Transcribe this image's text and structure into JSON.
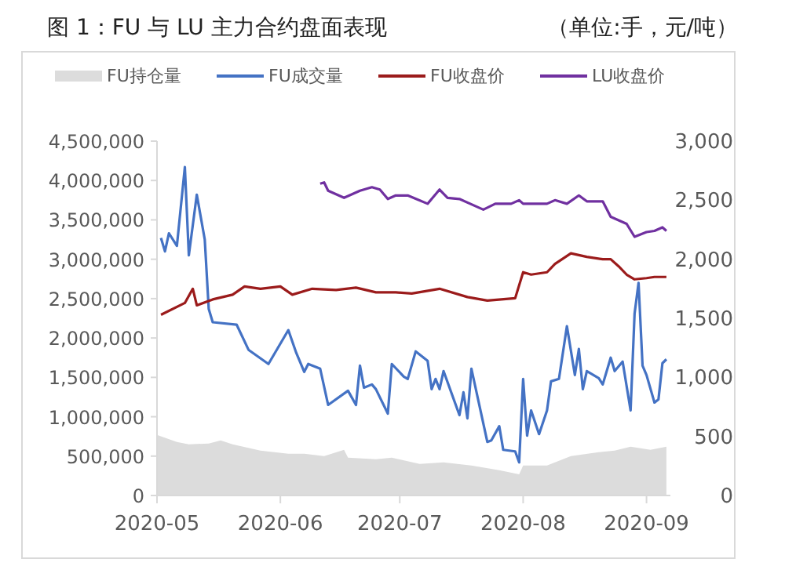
{
  "chart_data": {
    "type": "line",
    "title": "图 1：FU 与 LU 主力合约盘面表现",
    "subtitle": "（单位:手，元/吨）",
    "xlim": [
      "2020-05-01",
      "2020-09-07"
    ],
    "xticks": [
      "2020-05",
      "2020-06",
      "2020-07",
      "2020-08",
      "2020-09"
    ],
    "ylim": [
      0,
      4500000
    ],
    "yticks": [
      0,
      {
        "value": 500000,
        "label": "500,000"
      },
      {
        "value": 1000000,
        "label": "1,000,000"
      },
      {
        "value": 1500000,
        "label": "1,500,000"
      },
      {
        "value": 2000000,
        "label": "2,000,000"
      },
      {
        "value": 2500000,
        "label": "2,500,000"
      },
      {
        "value": 3000000,
        "label": "3,000,000"
      },
      {
        "value": 3500000,
        "label": "3,500,000"
      },
      {
        "value": 4000000,
        "label": "4,000,000"
      },
      {
        "value": 4500000,
        "label": "4,500,000"
      }
    ],
    "y2lim": [
      0,
      3000
    ],
    "y2ticks": [
      0,
      500,
      {
        "value": 1000,
        "label": "1,000"
      },
      {
        "value": 1500,
        "label": "1,500"
      },
      {
        "value": 2000,
        "label": "2,000"
      },
      {
        "value": 2500,
        "label": "2,500"
      },
      {
        "value": 3000,
        "label": "3,000"
      }
    ],
    "grid": false,
    "legend": "top",
    "marker": "none",
    "line_style": "solid",
    "series": [
      {
        "name": "FU持仓量",
        "type": "area",
        "color": "#dcdcdc",
        "x": [
          "2020-05-01",
          "2020-05-06",
          "2020-05-09",
          "2020-05-14",
          "2020-05-17",
          "2020-05-20",
          "2020-05-27",
          "2020-06-03",
          "2020-06-07",
          "2020-06-12",
          "2020-06-17",
          "2020-06-18",
          "2020-06-25",
          "2020-06-29",
          "2020-07-06",
          "2020-07-12",
          "2020-07-19",
          "2020-07-26",
          "2020-07-31",
          "2020-08-01",
          "2020-08-07",
          "2020-08-13",
          "2020-08-20",
          "2020-08-24",
          "2020-08-28",
          "2020-09-02",
          "2020-09-06"
        ],
        "values": [
          770000,
          680000,
          650000,
          660000,
          700000,
          650000,
          570000,
          530000,
          530000,
          500000,
          580000,
          480000,
          460000,
          480000,
          400000,
          420000,
          380000,
          320000,
          270000,
          380000,
          380000,
          500000,
          550000,
          570000,
          620000,
          580000,
          620000
        ]
      },
      {
        "name": "FU成交量",
        "color": "#4472c4",
        "x": [
          "2020-05-02",
          "2020-05-03",
          "2020-05-04",
          "2020-05-06",
          "2020-05-08",
          "2020-05-09",
          "2020-05-11",
          "2020-05-13",
          "2020-05-14",
          "2020-05-15",
          "2020-05-21",
          "2020-05-24",
          "2020-05-29",
          "2020-06-03",
          "2020-06-05",
          "2020-06-07",
          "2020-06-08",
          "2020-06-11",
          "2020-06-13",
          "2020-06-18",
          "2020-06-20",
          "2020-06-21",
          "2020-06-22",
          "2020-06-24",
          "2020-06-25",
          "2020-06-28",
          "2020-06-29",
          "2020-07-02",
          "2020-07-03",
          "2020-07-05",
          "2020-07-08",
          "2020-07-09",
          "2020-07-10",
          "2020-07-11",
          "2020-07-12",
          "2020-07-16",
          "2020-07-17",
          "2020-07-18",
          "2020-07-19",
          "2020-07-23",
          "2020-07-24",
          "2020-07-26",
          "2020-07-27",
          "2020-07-30",
          "2020-07-31",
          "2020-08-01",
          "2020-08-02",
          "2020-08-03",
          "2020-08-05",
          "2020-08-07",
          "2020-08-08",
          "2020-08-10",
          "2020-08-12",
          "2020-08-14",
          "2020-08-15",
          "2020-08-16",
          "2020-08-17",
          "2020-08-20",
          "2020-08-21",
          "2020-08-23",
          "2020-08-24",
          "2020-08-26",
          "2020-08-28",
          "2020-08-29",
          "2020-08-30",
          "2020-08-31",
          "2020-09-01",
          "2020-09-03",
          "2020-09-04",
          "2020-09-05",
          "2020-09-06"
        ],
        "values": [
          3270000,
          3100000,
          3330000,
          3170000,
          4170000,
          3050000,
          3820000,
          3250000,
          2370000,
          2200000,
          2170000,
          1850000,
          1670000,
          2100000,
          1810000,
          1570000,
          1670000,
          1610000,
          1150000,
          1330000,
          1150000,
          1650000,
          1370000,
          1410000,
          1350000,
          1040000,
          1670000,
          1510000,
          1480000,
          1830000,
          1710000,
          1350000,
          1480000,
          1350000,
          1580000,
          1020000,
          1310000,
          980000,
          1610000,
          680000,
          700000,
          880000,
          580000,
          560000,
          420000,
          1480000,
          760000,
          1080000,
          780000,
          1080000,
          1450000,
          1480000,
          2150000,
          1530000,
          1860000,
          1350000,
          1580000,
          1490000,
          1410000,
          1750000,
          1580000,
          1700000,
          1080000,
          2310000,
          2700000,
          1650000,
          1530000,
          1180000,
          1220000,
          1680000,
          1730000
        ]
      },
      {
        "name": "FU收盘价",
        "type": "line",
        "axis": "y2",
        "color": "#9b1b1b",
        "x": [
          "2020-05-02",
          "2020-05-08",
          "2020-05-10",
          "2020-05-11",
          "2020-05-15",
          "2020-05-20",
          "2020-05-23",
          "2020-05-27",
          "2020-06-01",
          "2020-06-04",
          "2020-06-09",
          "2020-06-15",
          "2020-06-20",
          "2020-06-25",
          "2020-06-30",
          "2020-07-04",
          "2020-07-11",
          "2020-07-18",
          "2020-07-23",
          "2020-07-30",
          "2020-08-01",
          "2020-08-03",
          "2020-08-07",
          "2020-08-09",
          "2020-08-13",
          "2020-08-17",
          "2020-08-21",
          "2020-08-23",
          "2020-08-25",
          "2020-08-27",
          "2020-08-29",
          "2020-09-01",
          "2020-09-03",
          "2020-09-06"
        ],
        "values": [
          1530,
          1630,
          1750,
          1610,
          1660,
          1700,
          1770,
          1750,
          1770,
          1700,
          1750,
          1740,
          1760,
          1720,
          1720,
          1710,
          1750,
          1680,
          1650,
          1670,
          1890,
          1870,
          1890,
          1960,
          2050,
          2020,
          2000,
          2000,
          1940,
          1870,
          1830,
          1840,
          1850,
          1850
        ]
      },
      {
        "name": "LU收盘价",
        "type": "line",
        "axis": "y2",
        "color": "#7030a0",
        "x": [
          "2020-06-11",
          "2020-06-12",
          "2020-06-13",
          "2020-06-17",
          "2020-06-21",
          "2020-06-24",
          "2020-06-26",
          "2020-06-28",
          "2020-06-30",
          "2020-07-03",
          "2020-07-08",
          "2020-07-11",
          "2020-07-13",
          "2020-07-16",
          "2020-07-22",
          "2020-07-25",
          "2020-07-29",
          "2020-07-31",
          "2020-08-01",
          "2020-08-07",
          "2020-08-09",
          "2020-08-12",
          "2020-08-15",
          "2020-08-17",
          "2020-08-21",
          "2020-08-23",
          "2020-08-27",
          "2020-08-29",
          "2020-09-01",
          "2020-09-03",
          "2020-09-05",
          "2020-09-06"
        ],
        "values": [
          2640,
          2650,
          2580,
          2520,
          2580,
          2610,
          2590,
          2510,
          2540,
          2540,
          2470,
          2590,
          2520,
          2510,
          2420,
          2470,
          2470,
          2500,
          2470,
          2470,
          2500,
          2470,
          2540,
          2490,
          2490,
          2360,
          2300,
          2190,
          2230,
          2240,
          2270,
          2240
        ]
      }
    ]
  }
}
